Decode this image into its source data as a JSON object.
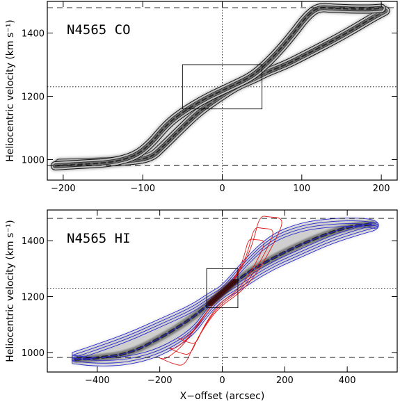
{
  "chart_data": [
    {
      "type": "contour",
      "panel_label": "N4565 CO",
      "xlabel": "",
      "ylabel": "Heliocentric velocity (km s⁻¹)",
      "xlim": [
        -220,
        220
      ],
      "ylim": [
        935,
        1500
      ],
      "x_ticks": [
        -200,
        -100,
        0,
        100,
        200
      ],
      "y_ticks": [
        1000,
        1200,
        1400
      ],
      "dashed_hlines": [
        982,
        1480
      ],
      "dotted_hline": 1230,
      "dotted_vline": 0,
      "box": {
        "x": [
          -50,
          50
        ],
        "y": [
          1160,
          1300
        ]
      },
      "ridges": [
        {
          "name": "",
          "points": [
            [
              -205,
              988
            ],
            [
              -170,
              990
            ],
            [
              -120,
              995
            ],
            [
              -90,
              1005
            ],
            [
              -75,
              1040
            ],
            [
              -55,
              1090
            ],
            [
              -30,
              1150
            ],
            [
              -5,
              1195
            ],
            [
              20,
              1235
            ],
            [
              40,
              1255
            ],
            [
              55,
              1275
            ],
            [
              80,
              1300
            ],
            [
              100,
              1325
            ],
            [
              150,
              1390
            ],
            [
              190,
              1450
            ],
            [
              205,
              1470
            ]
          ]
        },
        {
          "name": "",
          "points": [
            [
              -210,
              980
            ],
            [
              -180,
              985
            ],
            [
              -140,
              990
            ],
            [
              -110,
              1010
            ],
            [
              -90,
              1050
            ],
            [
              -70,
              1110
            ],
            [
              -50,
              1150
            ],
            [
              -20,
              1195
            ],
            [
              10,
              1230
            ],
            [
              35,
              1260
            ],
            [
              50,
              1290
            ],
            [
              70,
              1340
            ],
            [
              90,
              1400
            ],
            [
              105,
              1450
            ],
            [
              120,
              1482
            ],
            [
              140,
              1478
            ],
            [
              180,
              1475
            ],
            [
              200,
              1478
            ]
          ]
        }
      ]
    },
    {
      "type": "contour",
      "panel_label": "N4565 HI",
      "xlabel": "X−offset (arcsec)",
      "ylabel": "Heliocentric velocity (km s⁻¹)",
      "xlim": [
        -560,
        560
      ],
      "ylim": [
        930,
        1510
      ],
      "x_ticks": [
        -400,
        -200,
        0,
        200,
        400
      ],
      "y_ticks": [
        1000,
        1200,
        1400
      ],
      "dashed_hlines": [
        982,
        1480
      ],
      "dotted_hline": 1230,
      "dotted_vline": 0,
      "box": {
        "x": [
          -50,
          50
        ],
        "y": [
          1160,
          1300
        ]
      },
      "colors": {
        "hi_contour": "#2a2ad0",
        "co_contour": "#e01a1a"
      },
      "hi_ridge": [
        [
          -470,
          975
        ],
        [
          -400,
          980
        ],
        [
          -300,
          995
        ],
        [
          -200,
          1050
        ],
        [
          -100,
          1120
        ],
        [
          -30,
          1185
        ],
        [
          0,
          1215
        ],
        [
          50,
          1260
        ],
        [
          100,
          1300
        ],
        [
          200,
          1360
        ],
        [
          300,
          1410
        ],
        [
          400,
          1450
        ],
        [
          480,
          1460
        ]
      ],
      "hi_envelope_upper": [
        [
          -480,
          1000
        ],
        [
          -400,
          1030
        ],
        [
          -300,
          1070
        ],
        [
          -200,
          1120
        ],
        [
          -100,
          1170
        ],
        [
          -40,
          1215
        ],
        [
          0,
          1240
        ],
        [
          60,
          1320
        ],
        [
          150,
          1420
        ],
        [
          250,
          1465
        ],
        [
          350,
          1480
        ],
        [
          450,
          1482
        ],
        [
          500,
          1470
        ]
      ],
      "hi_envelope_lower": [
        [
          -480,
          960
        ],
        [
          -400,
          950
        ],
        [
          -300,
          955
        ],
        [
          -200,
          985
        ],
        [
          -100,
          1050
        ],
        [
          -40,
          1140
        ],
        [
          0,
          1185
        ],
        [
          60,
          1225
        ],
        [
          150,
          1290
        ],
        [
          250,
          1340
        ],
        [
          350,
          1390
        ],
        [
          450,
          1425
        ],
        [
          500,
          1440
        ]
      ],
      "co_outline": [
        [
          -200,
          980
        ],
        [
          -180,
          975
        ],
        [
          -120,
          1030
        ],
        [
          -80,
          1100
        ],
        [
          -40,
          1160
        ],
        [
          0,
          1210
        ],
        [
          40,
          1260
        ],
        [
          80,
          1340
        ],
        [
          100,
          1400
        ],
        [
          120,
          1490
        ],
        [
          150,
          1485
        ],
        [
          200,
          1480
        ],
        [
          170,
          1400
        ],
        [
          120,
          1300
        ],
        [
          80,
          1240
        ],
        [
          40,
          1200
        ],
        [
          0,
          1170
        ],
        [
          -40,
          1120
        ],
        [
          -90,
          1030
        ],
        [
          -120,
          950
        ],
        [
          -160,
          960
        ],
        [
          -200,
          980
        ]
      ]
    }
  ]
}
